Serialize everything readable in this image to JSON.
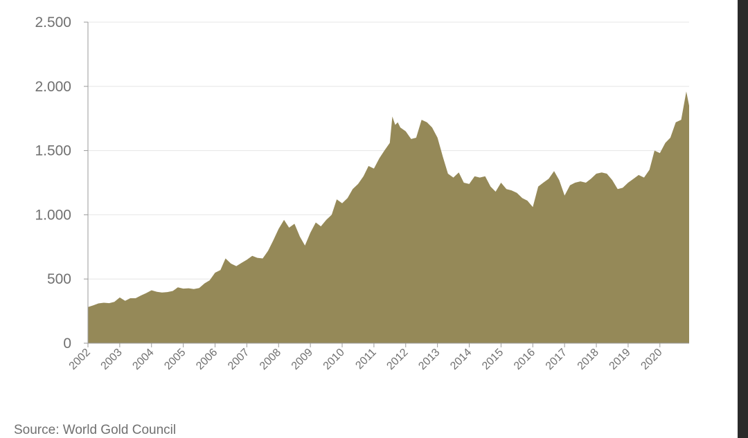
{
  "colors": {
    "area_fill": "#958958",
    "gridline": "#e6e6e6",
    "axis": "#9a9a9a",
    "tick_text": "#707070"
  },
  "source": "Source: World Gold Council",
  "chart_data": {
    "type": "area",
    "title": "",
    "xlabel": "",
    "ylabel": "",
    "xlim": [
      2002.0,
      2020.92
    ],
    "ylim": [
      0,
      2500
    ],
    "y_ticks": [
      0,
      500,
      1000,
      1500,
      2000,
      2500
    ],
    "y_tick_labels": [
      "0",
      "500",
      "1.000",
      "1.500",
      "2.000",
      "2.500"
    ],
    "x_ticks": [
      2002,
      2003,
      2004,
      2005,
      2006,
      2007,
      2008,
      2009,
      2010,
      2011,
      2012,
      2013,
      2014,
      2015,
      2016,
      2017,
      2018,
      2019,
      2020
    ],
    "x_tick_labels": [
      "2002",
      "2003",
      "2004",
      "2005",
      "2006",
      "2007",
      "2008",
      "2009",
      "2010",
      "2011",
      "2012",
      "2013",
      "2014",
      "2015",
      "2016",
      "2017",
      "2018",
      "2019",
      "2020"
    ],
    "grid": true,
    "legend": "none",
    "series": [
      {
        "x": [
          2002.0,
          2002.17,
          2002.33,
          2002.5,
          2002.67,
          2002.83,
          2003.0,
          2003.17,
          2003.33,
          2003.5,
          2003.67,
          2003.83,
          2004.0,
          2004.17,
          2004.33,
          2004.5,
          2004.67,
          2004.83,
          2005.0,
          2005.17,
          2005.33,
          2005.5,
          2005.67,
          2005.83,
          2006.0,
          2006.17,
          2006.33,
          2006.5,
          2006.67,
          2006.83,
          2007.0,
          2007.17,
          2007.33,
          2007.5,
          2007.67,
          2007.83,
          2008.0,
          2008.17,
          2008.33,
          2008.5,
          2008.67,
          2008.83,
          2009.0,
          2009.17,
          2009.33,
          2009.5,
          2009.67,
          2009.83,
          2010.0,
          2010.17,
          2010.33,
          2010.5,
          2010.67,
          2010.83,
          2011.0,
          2011.17,
          2011.33,
          2011.5,
          2011.58,
          2011.67,
          2011.75,
          2011.83,
          2012.0,
          2012.17,
          2012.33,
          2012.5,
          2012.67,
          2012.83,
          2013.0,
          2013.17,
          2013.33,
          2013.5,
          2013.67,
          2013.83,
          2014.0,
          2014.17,
          2014.33,
          2014.5,
          2014.67,
          2014.83,
          2015.0,
          2015.17,
          2015.33,
          2015.5,
          2015.67,
          2015.83,
          2016.0,
          2016.17,
          2016.33,
          2016.5,
          2016.67,
          2016.83,
          2017.0,
          2017.17,
          2017.33,
          2017.5,
          2017.67,
          2017.83,
          2018.0,
          2018.17,
          2018.33,
          2018.5,
          2018.67,
          2018.83,
          2019.0,
          2019.17,
          2019.33,
          2019.5,
          2019.67,
          2019.83,
          2020.0,
          2020.17,
          2020.33,
          2020.5,
          2020.67,
          2020.83,
          2020.92
        ],
        "values": [
          282,
          295,
          310,
          315,
          312,
          322,
          356,
          330,
          350,
          350,
          372,
          390,
          412,
          400,
          395,
          398,
          407,
          435,
          425,
          428,
          422,
          430,
          466,
          490,
          549,
          570,
          660,
          620,
          600,
          625,
          650,
          680,
          665,
          660,
          720,
          800,
          890,
          960,
          900,
          930,
          830,
          760,
          860,
          940,
          910,
          960,
          1000,
          1120,
          1090,
          1130,
          1200,
          1240,
          1300,
          1380,
          1360,
          1440,
          1500,
          1560,
          1765,
          1700,
          1720,
          1680,
          1650,
          1590,
          1600,
          1740,
          1720,
          1680,
          1600,
          1450,
          1320,
          1290,
          1330,
          1250,
          1240,
          1300,
          1290,
          1300,
          1220,
          1180,
          1250,
          1200,
          1190,
          1170,
          1130,
          1110,
          1060,
          1220,
          1250,
          1280,
          1340,
          1270,
          1150,
          1230,
          1250,
          1260,
          1250,
          1280,
          1320,
          1330,
          1320,
          1270,
          1200,
          1210,
          1250,
          1280,
          1310,
          1290,
          1350,
          1500,
          1480,
          1560,
          1600,
          1720,
          1740,
          1960,
          1850
        ]
      }
    ]
  }
}
